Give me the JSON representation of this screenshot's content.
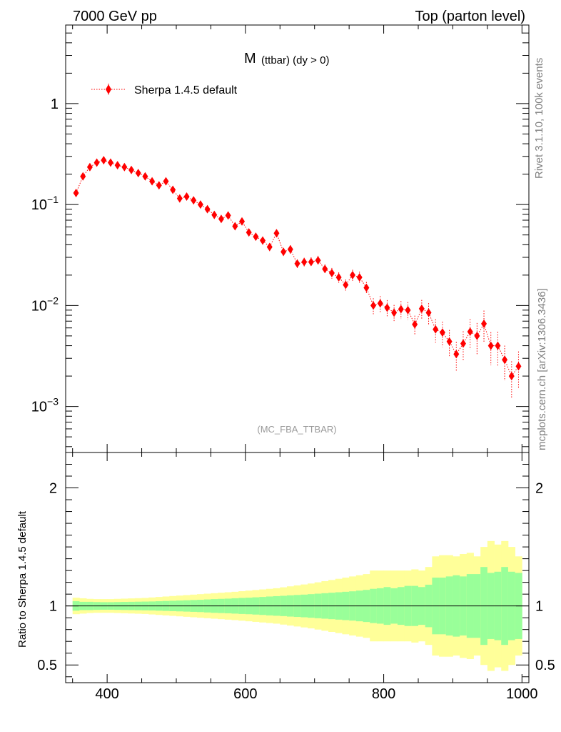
{
  "header": {
    "left": "7000 GeV pp",
    "right": "Top (parton level)"
  },
  "side_labels": {
    "rivet": "Rivet 3.1.10,  100k events",
    "mcplots": "mcplots.cern.ch [arXiv:1306.3436]"
  },
  "chart_data": [
    {
      "type": "scatter",
      "title_main": "M",
      "title_sub": "(ttbar) (dy > 0)",
      "analysis_tag": "(MC_FBA_TTBAR)",
      "legend": {
        "label": "Sherpa 1.4.5 default",
        "position": "top-left"
      },
      "x_scale": "linear",
      "y_scale": "log",
      "xlim": [
        340,
        1010
      ],
      "ylim": [
        0.00035,
        6
      ],
      "y_ticks": [
        {
          "value": 1,
          "base": "1",
          "exp": ""
        },
        {
          "value": 0.1,
          "base": "10",
          "exp": "−1"
        },
        {
          "value": 0.01,
          "base": "10",
          "exp": "−2"
        },
        {
          "value": 0.001,
          "base": "10",
          "exp": "−3"
        }
      ],
      "series": [
        {
          "name": "Sherpa 1.4.5 default",
          "color": "#ff0000",
          "x": [
            355,
            365,
            375,
            385,
            395,
            405,
            415,
            425,
            435,
            445,
            455,
            465,
            475,
            485,
            495,
            505,
            515,
            525,
            535,
            545,
            555,
            565,
            575,
            585,
            595,
            605,
            615,
            625,
            635,
            645,
            655,
            665,
            675,
            685,
            695,
            705,
            715,
            725,
            735,
            745,
            755,
            765,
            775,
            785,
            795,
            805,
            815,
            825,
            835,
            845,
            855,
            865,
            875,
            885,
            895,
            905,
            915,
            925,
            935,
            945,
            955,
            965,
            975,
            985,
            995
          ],
          "y": [
            0.13,
            0.19,
            0.235,
            0.26,
            0.275,
            0.26,
            0.245,
            0.235,
            0.22,
            0.205,
            0.19,
            0.17,
            0.155,
            0.17,
            0.14,
            0.115,
            0.12,
            0.11,
            0.1,
            0.09,
            0.079,
            0.072,
            0.078,
            0.061,
            0.068,
            0.053,
            0.048,
            0.044,
            0.038,
            0.052,
            0.034,
            0.036,
            0.026,
            0.027,
            0.027,
            0.028,
            0.023,
            0.021,
            0.019,
            0.016,
            0.02,
            0.019,
            0.015,
            0.01,
            0.0105,
            0.0095,
            0.0085,
            0.0092,
            0.009,
            0.0065,
            0.0093,
            0.0085,
            0.0058,
            0.0054,
            0.0044,
            0.0033,
            0.0042,
            0.0055,
            0.005,
            0.0066,
            0.004,
            0.004,
            0.0029,
            0.002,
            0.0025
          ],
          "err_frac": [
            0.04,
            0.04,
            0.04,
            0.04,
            0.04,
            0.04,
            0.04,
            0.04,
            0.05,
            0.05,
            0.05,
            0.05,
            0.05,
            0.05,
            0.06,
            0.06,
            0.06,
            0.06,
            0.06,
            0.07,
            0.07,
            0.07,
            0.07,
            0.08,
            0.08,
            0.08,
            0.08,
            0.09,
            0.09,
            0.09,
            0.09,
            0.1,
            0.1,
            0.1,
            0.11,
            0.11,
            0.11,
            0.12,
            0.12,
            0.13,
            0.13,
            0.14,
            0.14,
            0.18,
            0.18,
            0.19,
            0.19,
            0.2,
            0.2,
            0.22,
            0.22,
            0.24,
            0.26,
            0.28,
            0.3,
            0.32,
            0.32,
            0.33,
            0.34,
            0.35,
            0.36,
            0.37,
            0.38,
            0.4,
            0.4
          ]
        }
      ]
    },
    {
      "type": "area",
      "ylabel": "Ratio to Sherpa 1.4.5 default",
      "xlim": [
        340,
        1010
      ],
      "ylim": [
        0.35,
        2.3
      ],
      "x_ticks": [
        400,
        600,
        800,
        1000
      ],
      "y_ticks": [
        {
          "value": 0.5,
          "label": "0.5"
        },
        {
          "value": 1,
          "label": "1"
        },
        {
          "value": 2,
          "label": "2"
        }
      ],
      "band_colors": {
        "inner": "#99ff99",
        "outer": "#ffff99"
      },
      "reference_line": 1,
      "bins_x": [
        355,
        365,
        375,
        385,
        395,
        405,
        415,
        425,
        435,
        445,
        455,
        465,
        475,
        485,
        495,
        505,
        515,
        525,
        535,
        545,
        555,
        565,
        575,
        585,
        595,
        605,
        615,
        625,
        635,
        645,
        655,
        665,
        675,
        685,
        695,
        705,
        715,
        725,
        735,
        745,
        755,
        765,
        775,
        785,
        795,
        805,
        815,
        825,
        835,
        845,
        855,
        865,
        875,
        885,
        895,
        905,
        915,
        925,
        935,
        945,
        955,
        965,
        975,
        985,
        995
      ],
      "inner_halfwidth": [
        0.04,
        0.035,
        0.035,
        0.033,
        0.032,
        0.032,
        0.033,
        0.034,
        0.035,
        0.036,
        0.037,
        0.038,
        0.04,
        0.042,
        0.044,
        0.046,
        0.048,
        0.05,
        0.052,
        0.055,
        0.058,
        0.06,
        0.062,
        0.065,
        0.068,
        0.07,
        0.073,
        0.076,
        0.08,
        0.083,
        0.086,
        0.09,
        0.093,
        0.096,
        0.1,
        0.104,
        0.108,
        0.112,
        0.116,
        0.12,
        0.124,
        0.13,
        0.136,
        0.145,
        0.15,
        0.16,
        0.15,
        0.16,
        0.17,
        0.17,
        0.16,
        0.18,
        0.24,
        0.24,
        0.25,
        0.26,
        0.25,
        0.27,
        0.27,
        0.33,
        0.28,
        0.29,
        0.33,
        0.29,
        0.28
      ],
      "outer_halfwidth": [
        0.07,
        0.065,
        0.06,
        0.058,
        0.058,
        0.058,
        0.06,
        0.062,
        0.064,
        0.066,
        0.068,
        0.072,
        0.076,
        0.08,
        0.084,
        0.088,
        0.092,
        0.096,
        0.1,
        0.104,
        0.108,
        0.112,
        0.116,
        0.12,
        0.125,
        0.13,
        0.135,
        0.14,
        0.145,
        0.15,
        0.158,
        0.166,
        0.174,
        0.182,
        0.19,
        0.2,
        0.21,
        0.22,
        0.23,
        0.24,
        0.25,
        0.26,
        0.27,
        0.3,
        0.3,
        0.3,
        0.3,
        0.3,
        0.3,
        0.31,
        0.3,
        0.33,
        0.42,
        0.43,
        0.43,
        0.42,
        0.44,
        0.45,
        0.42,
        0.5,
        0.55,
        0.52,
        0.55,
        0.5,
        0.42
      ]
    }
  ]
}
